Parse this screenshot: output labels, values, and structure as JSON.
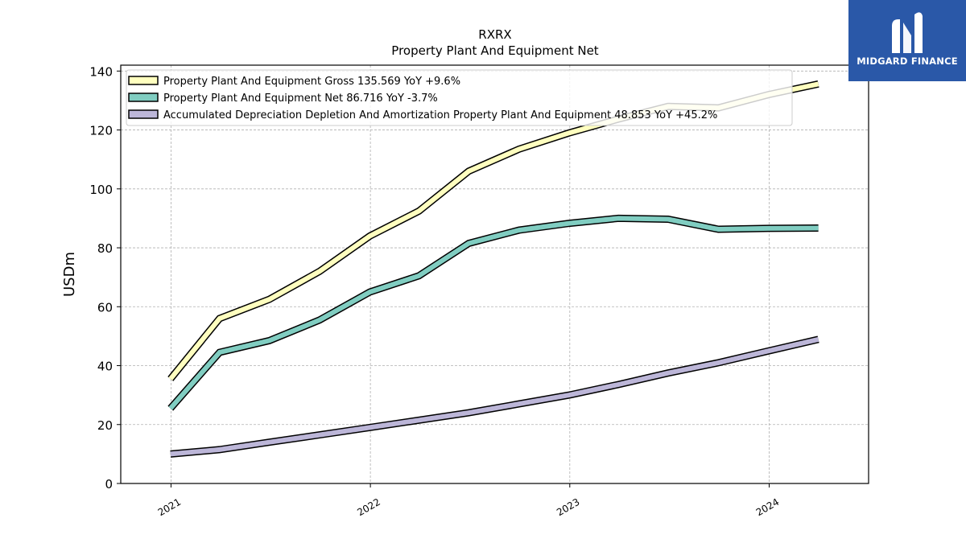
{
  "brand": {
    "name": "MIDGARD FINANCE",
    "logo_icon": "midgard-m-logo-icon",
    "color": "#2a58a8"
  },
  "chart_data": {
    "type": "line",
    "title": "RXRX",
    "subtitle": "Property Plant And Equipment Net",
    "xlabel": "",
    "ylabel": "USDm",
    "ylim": [
      0,
      142
    ],
    "xlim": [
      "2020-10-01",
      "2024-07-01"
    ],
    "yticks": [
      0,
      20,
      40,
      60,
      80,
      100,
      120,
      140
    ],
    "xticks": [
      {
        "date": "2021-01-01",
        "label": "2021"
      },
      {
        "date": "2022-01-01",
        "label": "2022"
      },
      {
        "date": "2023-01-01",
        "label": "2023"
      },
      {
        "date": "2024-01-01",
        "label": "2024"
      }
    ],
    "grid": true,
    "legend": "top-left",
    "x": [
      "2020-12-31",
      "2021-03-31",
      "2021-06-30",
      "2021-09-30",
      "2021-12-31",
      "2022-03-31",
      "2022-06-30",
      "2022-09-30",
      "2022-12-31",
      "2023-03-31",
      "2023-06-30",
      "2023-09-30",
      "2023-12-31",
      "2024-03-31"
    ],
    "series": [
      {
        "name": "Property Plant And Equipment Gross",
        "legend_label": "Property Plant And Equipment Gross  135.569 YoY +9.6%",
        "color": "#ffffbf",
        "values": [
          35.5,
          56,
          62.5,
          72,
          84,
          92.5,
          106,
          113.5,
          119,
          123.7,
          128,
          127.5,
          132,
          135.6
        ]
      },
      {
        "name": "Property Plant And Equipment Net",
        "legend_label": "Property Plant And Equipment Net  86.716 YoY -3.7%",
        "color": "#80cdc1",
        "values": [
          25.5,
          44.5,
          48.5,
          55.5,
          65,
          70.5,
          81.5,
          86,
          88.3,
          90,
          89.7,
          86.3,
          86.6,
          86.7
        ]
      },
      {
        "name": "Accumulated Depreciation Depletion And Amortization Property Plant And Equipment",
        "legend_label": "Accumulated Depreciation Depletion And Amortization Property Plant And Equipment  48.853 YoY +45.2%",
        "color": "#bcb6d8",
        "values": [
          10,
          11.5,
          14,
          16.5,
          19,
          21.5,
          24,
          27,
          30,
          33.6,
          37.5,
          41,
          45,
          48.9
        ]
      }
    ]
  }
}
